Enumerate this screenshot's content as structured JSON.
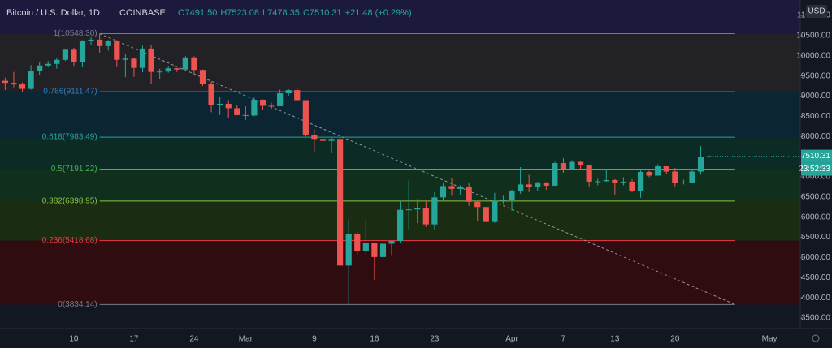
{
  "chart_data": {
    "type": "candlestick",
    "title": "Bitcoin / U.S. Dollar, 1D",
    "exchange": "COINBASE",
    "ohlc_legend": [
      "O7491.50",
      "H7523.08",
      "L7478.35",
      "C7510.31",
      "+21.48 (+0.29%)"
    ],
    "currency": "USD",
    "countdown": "23:52:33",
    "last_price": {
      "value": 7510.31,
      "label": "7510.31"
    },
    "up_color": "#26a69a",
    "down_color": "#ef5350",
    "categories": [
      null,
      null,
      null,
      null,
      null,
      null,
      null,
      null,
      "10",
      null,
      null,
      null,
      null,
      null,
      null,
      "17",
      null,
      null,
      null,
      null,
      null,
      null,
      "24",
      null,
      null,
      null,
      null,
      null,
      "Mar",
      null,
      null,
      null,
      null,
      null,
      null,
      null,
      "9",
      null,
      null,
      null,
      null,
      null,
      null,
      "16",
      null,
      null,
      null,
      null,
      null,
      null,
      "23",
      null,
      null,
      null,
      null,
      null,
      null,
      null,
      null,
      "Apr",
      null,
      null,
      null,
      null,
      null,
      "7",
      null,
      null,
      null,
      null,
      null,
      "13",
      null,
      null,
      null,
      null,
      null,
      null,
      "20",
      null,
      null,
      null,
      null,
      null,
      null,
      null,
      null,
      null,
      null,
      "May",
      null,
      null,
      null
    ],
    "open": [
      9380,
      9330,
      9290,
      9180,
      9620,
      9760,
      9800,
      9900,
      10150,
      9850,
      10370,
      10400,
      10240,
      10370,
      9900,
      9930,
      9700,
      10180,
      9600,
      9610,
      9690,
      9660,
      9960,
      9650,
      9310,
      8780,
      8810,
      8700,
      8530,
      8520,
      8910,
      8760,
      8750,
      9070,
      9150,
      8900,
      8040,
      7940,
      7890,
      7940,
      4800,
      5580,
      5160,
      5350,
      5010,
      5340,
      5410,
      6180,
      6190,
      6220,
      5820,
      6490,
      6770,
      6700,
      6750,
      6380,
      6250,
      5880,
      6400,
      6420,
      6650,
      6810,
      6740,
      6860,
      6780,
      7340,
      7200,
      7370,
      7300,
      6880,
      6890,
      6920,
      6860,
      6880,
      6640,
      7120,
      7030,
      7260,
      7130,
      6850,
      6860,
      7130,
      7491.5,
      null,
      null,
      null,
      null,
      null,
      null,
      null,
      null,
      null,
      null
    ],
    "high": [
      9460,
      9600,
      9340,
      9770,
      9850,
      9870,
      9950,
      10160,
      10200,
      10390,
      10480,
      10548.3,
      10390,
      10390,
      10050,
      9960,
      10250,
      10260,
      9680,
      9750,
      9700,
      9990,
      9990,
      9660,
      9360,
      8980,
      8900,
      8780,
      8750,
      8960,
      8920,
      8840,
      9160,
      9170,
      9190,
      8900,
      8180,
      8150,
      7970,
      7960,
      5950,
      5640,
      5940,
      5360,
      5420,
      5420,
      6400,
      6910,
      6450,
      6400,
      6620,
      6850,
      6980,
      6790,
      6860,
      6380,
      6250,
      6600,
      6530,
      6680,
      7240,
      7050,
      6880,
      6870,
      7370,
      7460,
      7410,
      7380,
      7300,
      6950,
      7200,
      6940,
      6990,
      6940,
      7200,
      7150,
      7310,
      7260,
      7220,
      6930,
      7160,
      7760,
      7523.08,
      null,
      null,
      null,
      null,
      null,
      null,
      null,
      null,
      null,
      null
    ],
    "low": [
      9150,
      9220,
      9100,
      9160,
      9530,
      9720,
      9680,
      9870,
      9750,
      9730,
      10260,
      10080,
      10130,
      9740,
      9470,
      9480,
      9590,
      9300,
      9420,
      9580,
      9600,
      9660,
      9510,
      9250,
      8600,
      8530,
      8450,
      8520,
      8410,
      8500,
      8660,
      8680,
      8750,
      9010,
      8880,
      8000,
      7630,
      7730,
      7590,
      4780,
      3834.14,
      5070,
      5080,
      4440,
      4960,
      5060,
      5350,
      5690,
      5850,
      5760,
      5700,
      6410,
      6530,
      6550,
      6280,
      5900,
      5880,
      5860,
      6330,
      6160,
      6580,
      6620,
      6660,
      6680,
      6770,
      7100,
      7160,
      7160,
      6760,
      6790,
      6880,
      6560,
      6790,
      6620,
      6480,
      6990,
      7030,
      7060,
      6760,
      6810,
      6850,
      7050,
      7478.35,
      null,
      null,
      null,
      null,
      null,
      null,
      null,
      null,
      null,
      null
    ],
    "close": [
      9330,
      9290,
      9180,
      9620,
      9760,
      9800,
      9900,
      10150,
      9850,
      10370,
      10400,
      10240,
      10370,
      9900,
      9930,
      9700,
      10180,
      9600,
      9610,
      9690,
      9660,
      9960,
      9650,
      9310,
      8780,
      8810,
      8700,
      8530,
      8520,
      8910,
      8760,
      8750,
      9070,
      9150,
      8900,
      8040,
      7940,
      7890,
      7940,
      4800,
      5580,
      5160,
      5350,
      5010,
      5340,
      5410,
      6180,
      6190,
      6220,
      5820,
      6490,
      6770,
      6700,
      6750,
      6380,
      6250,
      5880,
      6400,
      6420,
      6650,
      6810,
      6740,
      6860,
      6780,
      7340,
      7200,
      7370,
      7300,
      6880,
      6890,
      6920,
      6860,
      6880,
      6640,
      7120,
      7030,
      7260,
      7130,
      6850,
      6860,
      7130,
      7490,
      7510.31,
      null,
      null,
      null,
      null,
      null,
      null,
      null,
      null,
      null,
      null
    ],
    "ylim": [
      3238,
      11384
    ],
    "yticks": [
      {
        "value": 3500,
        "label": "3500.00"
      },
      {
        "value": 4000,
        "label": "4000.00"
      },
      {
        "value": 4500,
        "label": "4500.00"
      },
      {
        "value": 5000,
        "label": "5000.00"
      },
      {
        "value": 5500,
        "label": "5500.00"
      },
      {
        "value": 6000,
        "label": "6000.00"
      },
      {
        "value": 6500,
        "label": "6500.00"
      },
      {
        "value": 7000,
        "label": "7000.00"
      },
      {
        "value": 7500,
        "label": "7500.00"
      },
      {
        "value": 8000,
        "label": "8000.00"
      },
      {
        "value": 8500,
        "label": "8500.00"
      },
      {
        "value": 9000,
        "label": "9000.00"
      },
      {
        "value": 9500,
        "label": "9500.00"
      },
      {
        "value": 10000,
        "label": "10000.00"
      },
      {
        "value": 10500,
        "label": "10500.00"
      },
      {
        "value": 11000,
        "label": "11000.00"
      }
    ],
    "top_fill": "#1c1a3c",
    "fib_levels": [
      {
        "value": 10548.3,
        "label": "1(10548.30)",
        "color": "#787b86",
        "fill": "#222226"
      },
      {
        "value": 9111.47,
        "label": "0.786(9111.47)",
        "color": "#2f7fc1",
        "fill": "#0c2533"
      },
      {
        "value": 7983.49,
        "label": "0.618(7983.49)",
        "color": "#26a69a",
        "fill": "#0c2b24"
      },
      {
        "value": 7191.22,
        "label": "0.5(7191.22)",
        "color": "#4caf50",
        "fill": "#10301d"
      },
      {
        "value": 6398.95,
        "label": "0.382(6398.95)",
        "color": "#8bc34a",
        "fill": "#1a2d12"
      },
      {
        "value": 5418.68,
        "label": "0.236(5418.68)",
        "color": "#f23645",
        "fill": "#2e0c10"
      },
      {
        "value": 3834.14,
        "label": "0(3834.14)",
        "color": "#787b86"
      }
    ]
  }
}
